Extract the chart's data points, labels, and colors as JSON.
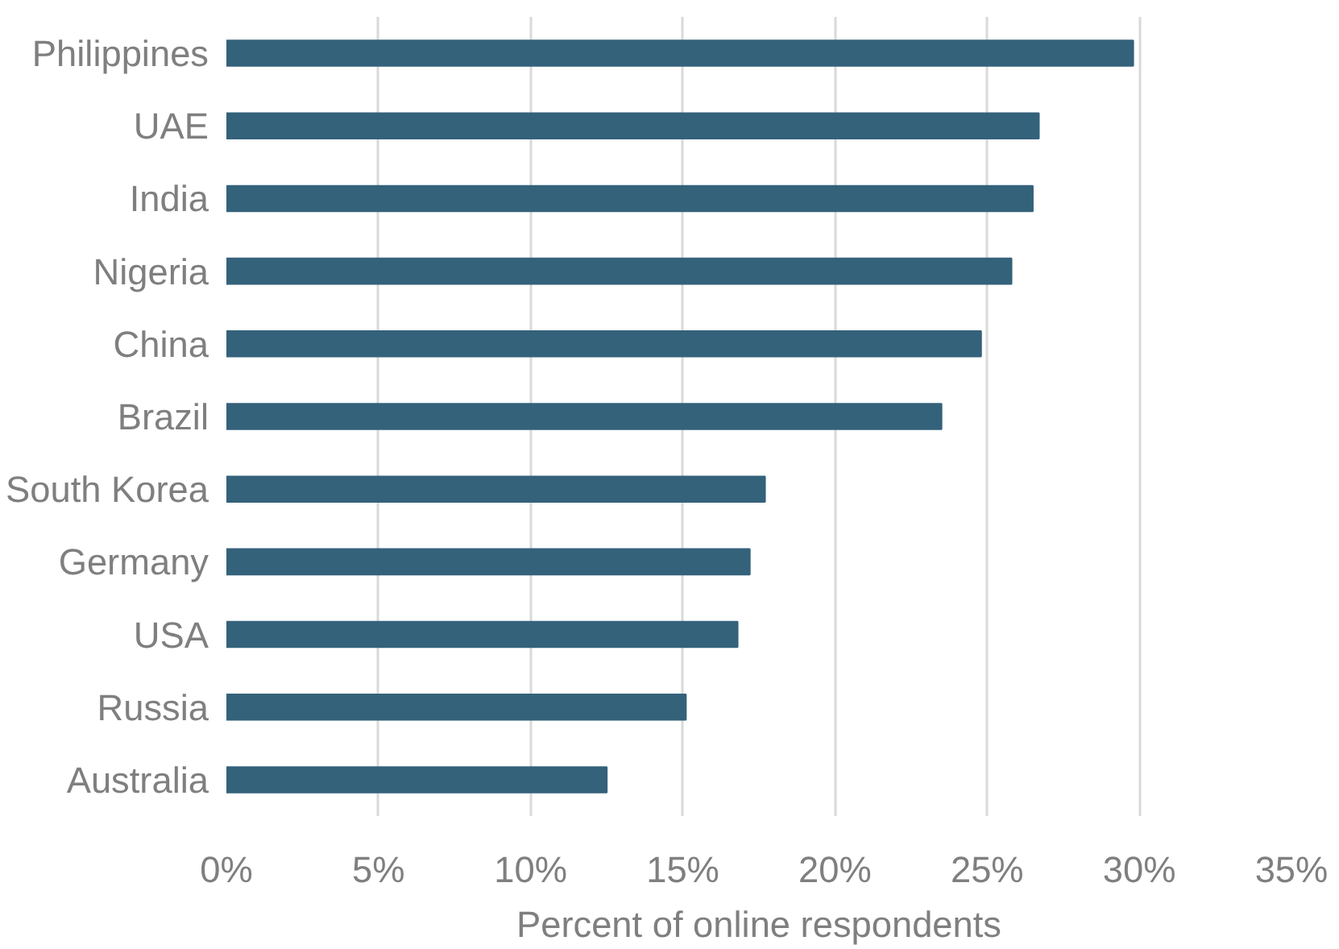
{
  "chart_data": {
    "type": "bar",
    "orientation": "horizontal",
    "xlabel": "Percent of online respondents",
    "categories": [
      "Philippines",
      "UAE",
      "India",
      "Nigeria",
      "China",
      "Brazil",
      "South Korea",
      "Germany",
      "USA",
      "Russia",
      "Australia"
    ],
    "values": [
      29.8,
      26.7,
      26.5,
      25.8,
      24.8,
      23.5,
      17.7,
      17.2,
      16.8,
      15.1,
      12.5
    ],
    "color": "#34627b",
    "xlim": [
      0,
      35
    ],
    "xticks": [
      {
        "value": 0,
        "label": "0%"
      },
      {
        "value": 5,
        "label": "5%"
      },
      {
        "value": 10,
        "label": "10%"
      },
      {
        "value": 15,
        "label": "15%"
      },
      {
        "value": 20,
        "label": "20%"
      },
      {
        "value": 25,
        "label": "25%"
      },
      {
        "value": 30,
        "label": "30%"
      },
      {
        "value": 35,
        "label": "35%"
      }
    ],
    "grid": "x"
  }
}
